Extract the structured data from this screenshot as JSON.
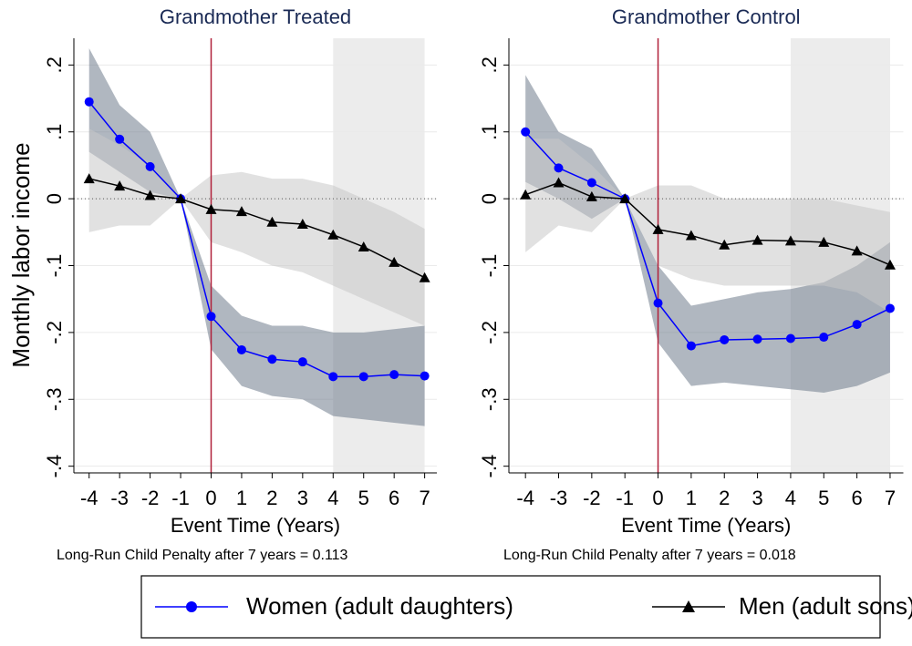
{
  "chart_data": [
    {
      "type": "line",
      "title": "Grandmother Treated",
      "y_label": "Monthly labor income",
      "x_label": "Event Time (Years)",
      "note": "Long-Run Child Penalty after 7 years = 0.113",
      "x": [
        -4,
        -3,
        -2,
        -1,
        0,
        1,
        2,
        3,
        4,
        5,
        6,
        7
      ],
      "xlim": [
        -4.5,
        7.4
      ],
      "xticks": [
        -4,
        -3,
        -2,
        -1,
        0,
        1,
        2,
        3,
        4,
        5,
        6,
        7
      ],
      "ylim": [
        -0.41,
        0.24
      ],
      "yticks": [
        {
          "value": 0.2,
          "label": ".2"
        },
        {
          "value": 0.1,
          "label": ".1"
        },
        0,
        {
          "value": -0.1,
          "label": "-.1"
        },
        {
          "value": -0.2,
          "label": "-.2"
        },
        {
          "value": -0.3,
          "label": "-.3"
        },
        {
          "value": -0.4,
          "label": "-.4"
        }
      ],
      "grid": true,
      "vline": 0,
      "vline_color": "#b0203a",
      "hline": 0,
      "shaded_xrange": [
        4,
        7
      ],
      "shade_color": "#ececec",
      "series": [
        {
          "name": "Women (adult daughters)",
          "color": "#0000ff",
          "marker": "circle",
          "band_color": "#6f7b8d",
          "values": [
            0.145,
            0.089,
            0.048,
            0,
            -0.176,
            -0.226,
            -0.24,
            -0.244,
            -0.266,
            -0.266,
            -0.263,
            -0.265
          ],
          "lower": [
            0.07,
            0.04,
            0.01,
            0,
            -0.225,
            -0.28,
            -0.295,
            -0.3,
            -0.325,
            -0.33,
            -0.335,
            -0.34
          ],
          "upper": [
            0.225,
            0.14,
            0.1,
            0,
            -0.13,
            -0.175,
            -0.19,
            -0.19,
            -0.2,
            -0.2,
            -0.195,
            -0.19
          ]
        },
        {
          "name": "Men (adult sons)",
          "color": "#000000",
          "marker": "triangle",
          "band_color": "#c8c8c8",
          "values": [
            0.03,
            0.019,
            0.005,
            0,
            -0.016,
            -0.019,
            -0.035,
            -0.038,
            -0.054,
            -0.072,
            -0.095,
            -0.118
          ],
          "lower": [
            -0.05,
            -0.04,
            -0.04,
            0,
            -0.065,
            -0.08,
            -0.1,
            -0.11,
            -0.13,
            -0.15,
            -0.17,
            -0.19
          ],
          "upper": [
            0.105,
            0.08,
            0.05,
            0,
            0.035,
            0.04,
            0.03,
            0.03,
            0.02,
            0,
            -0.02,
            -0.045
          ]
        }
      ]
    },
    {
      "type": "line",
      "title": "Grandmother Control",
      "x_label": "Event Time (Years)",
      "note": "Long-Run Child Penalty after 7 years = 0.018",
      "x": [
        -4,
        -3,
        -2,
        -1,
        0,
        1,
        2,
        3,
        4,
        5,
        6,
        7
      ],
      "xlim": [
        -4.5,
        7.4
      ],
      "xticks": [
        -4,
        -3,
        -2,
        -1,
        0,
        1,
        2,
        3,
        4,
        5,
        6,
        7
      ],
      "ylim": [
        -0.41,
        0.24
      ],
      "yticks": [
        {
          "value": 0.2,
          "label": ".2"
        },
        {
          "value": 0.1,
          "label": ".1"
        },
        0,
        {
          "value": -0.1,
          "label": "-.1"
        },
        {
          "value": -0.2,
          "label": "-.2"
        },
        {
          "value": -0.3,
          "label": "-.3"
        },
        {
          "value": -0.4,
          "label": "-.4"
        }
      ],
      "grid": true,
      "vline": 0,
      "vline_color": "#b0203a",
      "hline": 0,
      "shaded_xrange": [
        4,
        7
      ],
      "shade_color": "#ececec",
      "series": [
        {
          "color": "#0000ff",
          "marker": "circle",
          "band_color": "#6f7b8d",
          "values": [
            0.1,
            0.046,
            0.024,
            0,
            -0.156,
            -0.22,
            -0.211,
            -0.21,
            -0.209,
            -0.207,
            -0.188,
            -0.164
          ],
          "lower": [
            0.025,
            0,
            -0.03,
            0,
            -0.215,
            -0.28,
            -0.275,
            -0.28,
            -0.285,
            -0.29,
            -0.28,
            -0.26
          ],
          "upper": [
            0.185,
            0.1,
            0.075,
            0,
            -0.1,
            -0.16,
            -0.15,
            -0.14,
            -0.135,
            -0.125,
            -0.1,
            -0.065
          ]
        },
        {
          "color": "#000000",
          "marker": "triangle",
          "band_color": "#c8c8c8",
          "values": [
            0.006,
            0.024,
            0.003,
            0,
            -0.046,
            -0.055,
            -0.069,
            -0.062,
            -0.063,
            -0.065,
            -0.078,
            -0.099
          ],
          "lower": [
            -0.08,
            -0.04,
            -0.05,
            0,
            -0.1,
            -0.12,
            -0.13,
            -0.13,
            -0.13,
            -0.13,
            -0.14,
            -0.17
          ],
          "upper": [
            0.09,
            0.09,
            0.05,
            0,
            0.02,
            0.02,
            0,
            0,
            0,
            0,
            -0.01,
            -0.02
          ]
        }
      ]
    }
  ]
}
